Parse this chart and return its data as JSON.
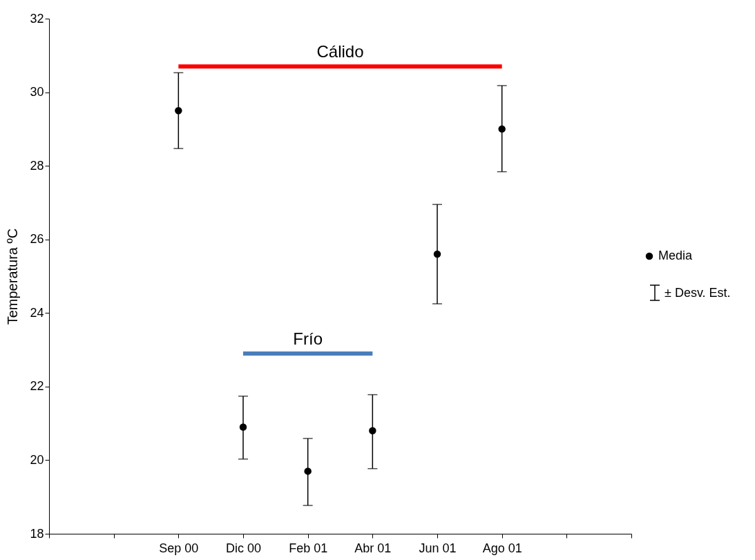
{
  "chart_data": {
    "type": "scatter",
    "ylabel": "Temperatura ºC",
    "categories": [
      null,
      null,
      "Sep 00",
      "Dic 00",
      "Feb 01",
      "Abr 01",
      "Jun 01",
      "Ago 01",
      null,
      null
    ],
    "ylim": [
      18,
      32
    ],
    "yticks": [
      18,
      20,
      22,
      24,
      26,
      28,
      30,
      32
    ],
    "series": [
      {
        "name": "Media",
        "marker": "circle",
        "color": "#000000",
        "x": [
          "Sep 00",
          "Dic 00",
          "Feb 01",
          "Abr 01",
          "Jun 01",
          "Ago 01"
        ],
        "values": [
          29.5,
          20.9,
          19.7,
          20.8,
          25.6,
          29.0
        ],
        "errors": [
          [
            28.47,
            30.53
          ],
          [
            20.03,
            21.74
          ],
          [
            18.77,
            20.59
          ],
          [
            19.77,
            21.78
          ],
          [
            24.25,
            26.95
          ],
          [
            27.84,
            30.18
          ]
        ]
      },
      {
        "name": "Cálido",
        "type": "line",
        "marker": "none",
        "color": "#ff0000",
        "x": [
          "Sep 00",
          "Ago 01"
        ],
        "values": [
          30.7,
          30.7
        ]
      },
      {
        "name": "Frío",
        "type": "line",
        "marker": "none",
        "color": "#4a7ebb",
        "x": [
          "Dic 00",
          "Abr 01"
        ],
        "values": [
          22.9,
          22.9
        ]
      }
    ],
    "grid": false,
    "legend": "right",
    "annotations": [
      "± Desv. Est."
    ]
  }
}
